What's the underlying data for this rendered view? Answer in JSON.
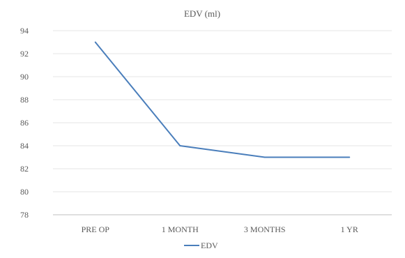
{
  "chart_data": {
    "type": "line",
    "title": "EDV (ml)",
    "categories": [
      "PRE OP",
      "1 MONTH",
      "3 MONTHS",
      "1 YR"
    ],
    "series": [
      {
        "name": "EDV",
        "values": [
          93,
          84,
          83,
          83
        ],
        "color": "#4a7ebb"
      }
    ],
    "ylim": [
      78,
      94
    ],
    "yticks": [
      78,
      80,
      82,
      84,
      86,
      88,
      90,
      92,
      94
    ],
    "grid": true,
    "legend_position": "bottom"
  }
}
